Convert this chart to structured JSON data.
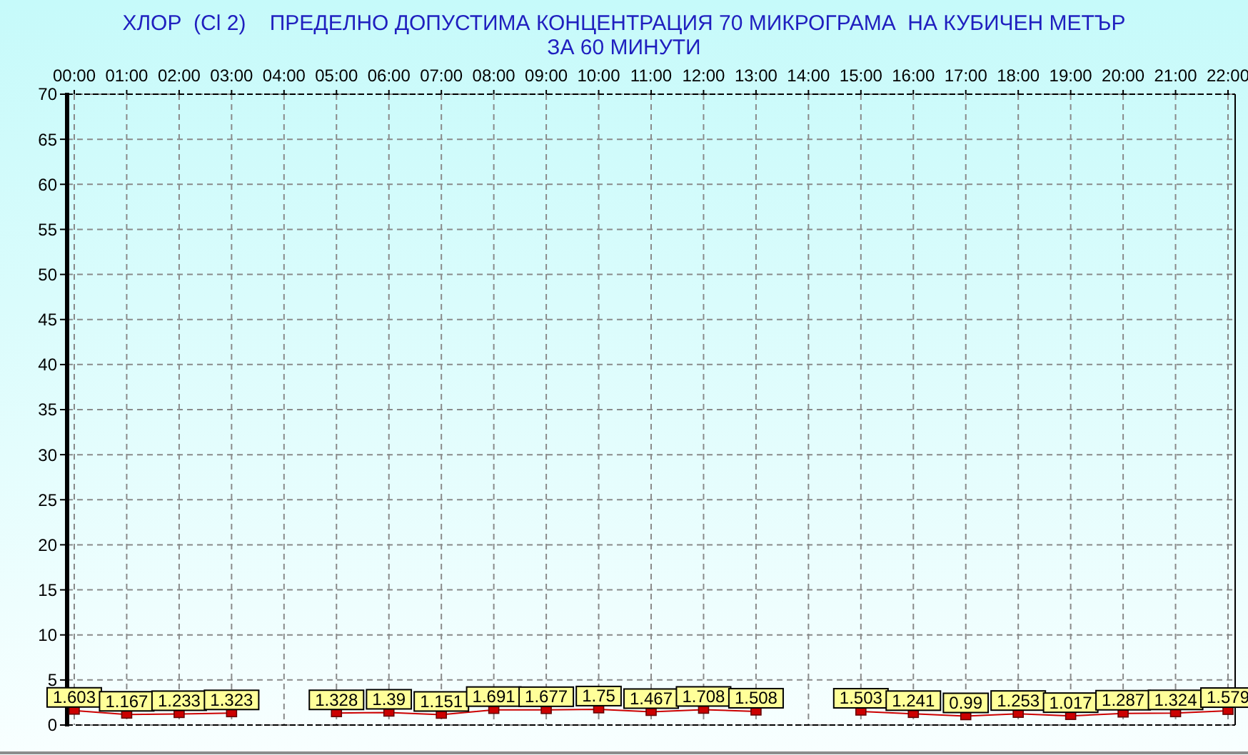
{
  "chart_data": {
    "type": "line",
    "title": "ХЛОР  (Cl 2)    ПРЕДЕЛНО ДОПУСТИМА КОНЦЕНТРАЦИЯ 70 МИКРОГРАМА  НА КУБИЧЕН МЕТЪР",
    "subtitle": "ЗА 60 МИНУТИ",
    "categories": [
      "00:00",
      "01:00",
      "02:00",
      "03:00",
      "04:00",
      "05:00",
      "06:00",
      "07:00",
      "08:00",
      "09:00",
      "10:00",
      "11:00",
      "12:00",
      "13:00",
      "14:00",
      "15:00",
      "16:00",
      "17:00",
      "18:00",
      "19:00",
      "20:00",
      "21:00",
      "22:00"
    ],
    "series": [
      {
        "color": "#cc0000",
        "values": [
          1.603,
          1.167,
          1.233,
          1.323,
          null,
          1.328,
          1.39,
          1.151,
          1.691,
          1.677,
          1.75,
          1.467,
          1.708,
          1.508,
          null,
          1.503,
          1.241,
          0.99,
          1.253,
          1.017,
          1.287,
          1.324,
          1.579
        ]
      }
    ],
    "ylim": [
      0,
      70
    ],
    "yticks": [
      0,
      5,
      10,
      15,
      20,
      25,
      30,
      35,
      40,
      45,
      50,
      55,
      60,
      65,
      70
    ],
    "grid": true,
    "marker": "square",
    "data_labels": true
  }
}
